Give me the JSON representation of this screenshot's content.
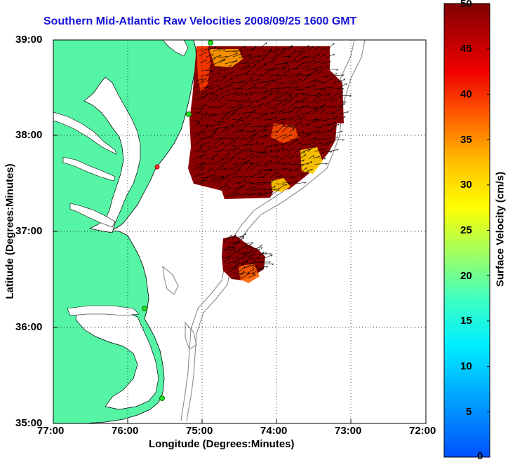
{
  "title": "Southern Mid-Atlantic Raw Velocities 2008/09/25 1600 GMT",
  "x_axis": {
    "label": "Longitude (Degrees:Minutes)",
    "ticks": [
      "77:00",
      "76:00",
      "75:00",
      "74:00",
      "73:00",
      "72:00"
    ]
  },
  "y_axis": {
    "label": "Latitude (Degrees:Minutes)",
    "ticks": [
      "39:00",
      "38:00",
      "37:00",
      "36:00",
      "35:00"
    ]
  },
  "colorbar": {
    "label": "Surface Velocity (cm/s)",
    "ticks": [
      "50",
      "45",
      "40",
      "35",
      "30",
      "25",
      "20",
      "15",
      "10",
      "5",
      "0"
    ],
    "min": 0,
    "max": 50
  },
  "map": {
    "lon_range": [
      -77,
      -72
    ],
    "lat_range": [
      35,
      39
    ],
    "grid": "dotted",
    "land_color": "#55f5a5",
    "sea_color": "#ffffff",
    "vector_color": "#000000",
    "station_color": "#22dd22",
    "station_count": 5,
    "velocity_fields": 2
  }
}
